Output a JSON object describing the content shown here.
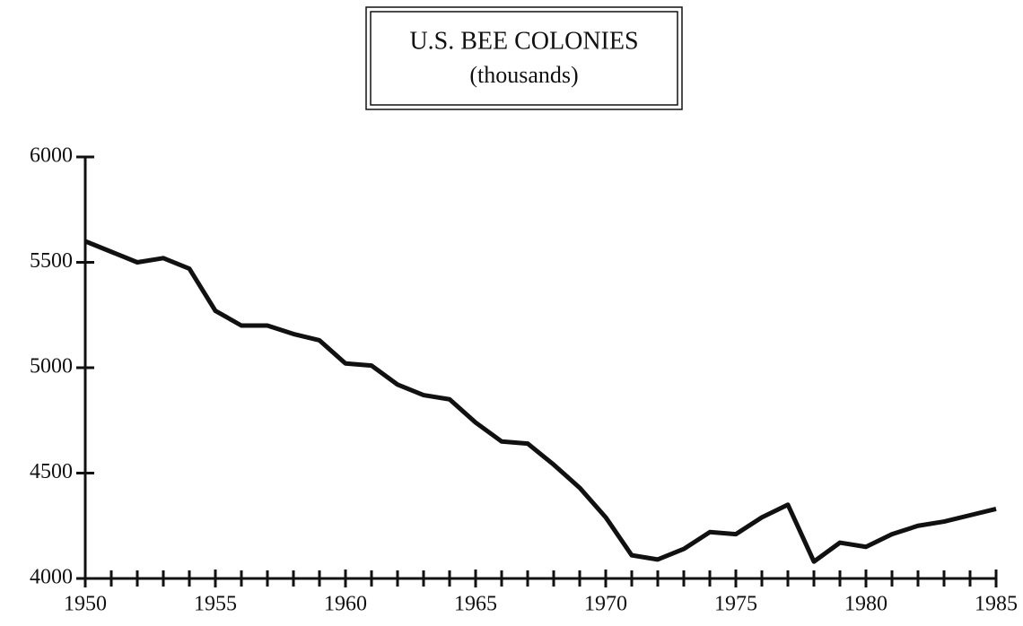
{
  "chart_data": {
    "type": "line",
    "title": "U.S. BEE COLONIES",
    "subtitle": "(thousands)",
    "x": [
      1950,
      1951,
      1952,
      1953,
      1954,
      1955,
      1956,
      1957,
      1958,
      1959,
      1960,
      1961,
      1962,
      1963,
      1964,
      1965,
      1966,
      1967,
      1968,
      1969,
      1970,
      1971,
      1972,
      1973,
      1974,
      1975,
      1976,
      1977,
      1978,
      1979,
      1980,
      1981,
      1982,
      1983,
      1984,
      1985
    ],
    "series": [
      {
        "name": "Bee colonies",
        "color": "#111111",
        "values": [
          5600,
          5550,
          5500,
          5520,
          5470,
          5270,
          5200,
          5200,
          5160,
          5130,
          5020,
          5010,
          4920,
          4870,
          4850,
          4740,
          4650,
          4640,
          4540,
          4430,
          4290,
          4110,
          4090,
          4140,
          4220,
          4210,
          4290,
          4350,
          4080,
          4170,
          4150,
          4210,
          4250,
          4270,
          4300,
          4330
        ]
      }
    ],
    "xlim": [
      1950,
      1985
    ],
    "xticks": [
      1950,
      1955,
      1960,
      1965,
      1970,
      1975,
      1980,
      1985
    ],
    "ylim": [
      4000,
      6000
    ],
    "yticks": [
      4000,
      4500,
      5000,
      5500,
      6000
    ],
    "grid": false
  }
}
